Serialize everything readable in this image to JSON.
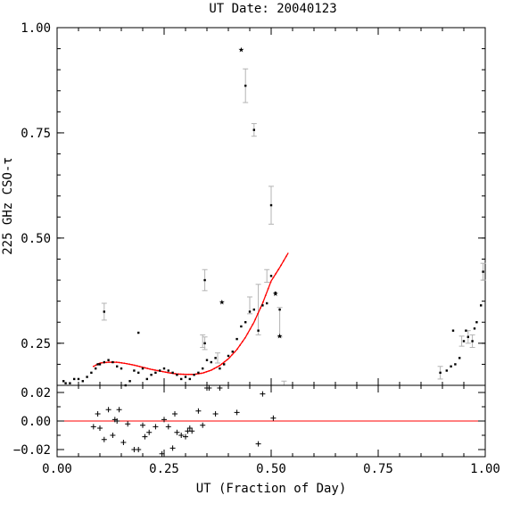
{
  "chart_data": [
    {
      "type": "scatter",
      "title": "UT Date: 20040123",
      "xlabel": "",
      "ylabel": "225 GHz CSO-τ",
      "xlim": [
        0.0,
        1.0
      ],
      "ylim": [
        0.15,
        1.0
      ],
      "yticks": [
        "1.00",
        "0.75",
        "0.50",
        "0.25"
      ],
      "yticks_values": [
        1.0,
        0.75,
        0.5,
        0.25
      ],
      "grid": false,
      "series": [
        {
          "marker": "dot",
          "color": "#000000",
          "points": [
            [
              0.005,
              0.14
            ],
            [
              0.01,
              0.145
            ],
            [
              0.015,
              0.16
            ],
            [
              0.02,
              0.155
            ],
            [
              0.03,
              0.155
            ],
            [
              0.04,
              0.165
            ],
            [
              0.05,
              0.165
            ],
            [
              0.06,
              0.16
            ],
            [
              0.07,
              0.17
            ],
            [
              0.08,
              0.18
            ],
            [
              0.09,
              0.19
            ],
            [
              0.095,
              0.2
            ],
            [
              0.1,
              0.2
            ],
            [
              0.11,
              0.205
            ],
            [
              0.12,
              0.21
            ],
            [
              0.13,
              0.205
            ],
            [
              0.14,
              0.195
            ],
            [
              0.15,
              0.19
            ],
            [
              0.16,
              0.15
            ],
            [
              0.17,
              0.16
            ],
            [
              0.18,
              0.185
            ],
            [
              0.19,
              0.18
            ],
            [
              0.2,
              0.19
            ],
            [
              0.21,
              0.165
            ],
            [
              0.22,
              0.175
            ],
            [
              0.23,
              0.18
            ],
            [
              0.24,
              0.185
            ],
            [
              0.25,
              0.19
            ],
            [
              0.26,
              0.185
            ],
            [
              0.27,
              0.18
            ],
            [
              0.28,
              0.175
            ],
            [
              0.29,
              0.165
            ],
            [
              0.3,
              0.17
            ],
            [
              0.31,
              0.165
            ],
            [
              0.32,
              0.175
            ],
            [
              0.33,
              0.18
            ],
            [
              0.34,
              0.19
            ],
            [
              0.35,
              0.21
            ],
            [
              0.36,
              0.205
            ],
            [
              0.37,
              0.215
            ],
            [
              0.38,
              0.19
            ],
            [
              0.39,
              0.2
            ],
            [
              0.4,
              0.22
            ],
            [
              0.41,
              0.23
            ],
            [
              0.42,
              0.26
            ],
            [
              0.43,
              0.29
            ],
            [
              0.44,
              0.3
            ],
            [
              0.45,
              0.325
            ],
            [
              0.46,
              0.33
            ],
            [
              0.47,
              0.28
            ],
            [
              0.48,
              0.34
            ],
            [
              0.49,
              0.345
            ],
            [
              0.5,
              0.41
            ],
            [
              0.51,
              0.37
            ],
            [
              0.52,
              0.33
            ],
            [
              0.53,
              0.14
            ],
            [
              0.19,
              0.275
            ],
            [
              0.11,
              0.325
            ],
            [
              0.345,
              0.4
            ],
            [
              0.44,
              0.862
            ],
            [
              0.46,
              0.757
            ],
            [
              0.5,
              0.578
            ],
            [
              0.345,
              0.25
            ],
            [
              0.895,
              0.18
            ],
            [
              0.91,
              0.185
            ],
            [
              0.92,
              0.195
            ],
            [
              0.925,
              0.28
            ],
            [
              0.93,
              0.2
            ],
            [
              0.94,
              0.215
            ],
            [
              0.95,
              0.255
            ],
            [
              0.955,
              0.28
            ],
            [
              0.96,
              0.265
            ],
            [
              0.97,
              0.255
            ],
            [
              0.975,
              0.285
            ],
            [
              0.98,
              0.3
            ],
            [
              0.99,
              0.34
            ],
            [
              0.995,
              0.42
            ]
          ]
        },
        {
          "marker": "star",
          "color": "#000000",
          "points": [
            [
              0.43,
              0.95
            ],
            [
              0.33,
              0.14
            ],
            [
              0.385,
              0.35
            ],
            [
              0.51,
              0.37
            ],
            [
              0.52,
              0.27
            ]
          ]
        }
      ],
      "error_bars": [
        [
          0.11,
          0.325,
          0.02
        ],
        [
          0.345,
          0.4,
          0.025
        ],
        [
          0.44,
          0.862,
          0.04
        ],
        [
          0.46,
          0.757,
          0.015
        ],
        [
          0.5,
          0.578,
          0.045
        ],
        [
          0.345,
          0.25,
          0.015
        ],
        [
          0.47,
          0.33,
          0.06
        ],
        [
          0.49,
          0.41,
          0.015
        ],
        [
          0.52,
          0.3,
          0.035
        ],
        [
          0.53,
          0.14,
          0.02
        ],
        [
          0.34,
          0.255,
          0.015
        ],
        [
          0.895,
          0.18,
          0.015
        ],
        [
          0.96,
          0.265,
          0.015
        ],
        [
          0.97,
          0.255,
          0.015
        ],
        [
          0.995,
          0.42,
          0.02
        ],
        [
          0.945,
          0.255,
          0.012
        ],
        [
          0.375,
          0.215,
          0.012
        ],
        [
          0.45,
          0.34,
          0.02
        ]
      ],
      "fit_curve": {
        "color": "#ff0000",
        "x_range": [
          0.085,
          0.54
        ],
        "points": [
          [
            0.085,
            0.195
          ],
          [
            0.1,
            0.203
          ],
          [
            0.12,
            0.205
          ],
          [
            0.14,
            0.205
          ],
          [
            0.16,
            0.202
          ],
          [
            0.18,
            0.198
          ],
          [
            0.2,
            0.193
          ],
          [
            0.22,
            0.188
          ],
          [
            0.24,
            0.184
          ],
          [
            0.26,
            0.18
          ],
          [
            0.28,
            0.177
          ],
          [
            0.3,
            0.176
          ],
          [
            0.32,
            0.176
          ],
          [
            0.34,
            0.179
          ],
          [
            0.36,
            0.186
          ],
          [
            0.38,
            0.197
          ],
          [
            0.4,
            0.213
          ],
          [
            0.42,
            0.235
          ],
          [
            0.44,
            0.264
          ],
          [
            0.46,
            0.3
          ],
          [
            0.48,
            0.345
          ],
          [
            0.5,
            0.398
          ],
          [
            0.52,
            0.43
          ],
          [
            0.54,
            0.465
          ]
        ]
      }
    },
    {
      "type": "scatter",
      "title": "",
      "xlabel": "UT (Fraction of Day)",
      "ylabel": "",
      "xlim": [
        0.0,
        1.0
      ],
      "ylim": [
        -0.025,
        0.025
      ],
      "xticks": [
        "0.00",
        "0.25",
        "0.50",
        "0.75",
        "1.00"
      ],
      "xticks_values": [
        0.0,
        0.25,
        0.5,
        0.75,
        1.0
      ],
      "yticks": [
        "0.02",
        "0.00",
        "−0.02"
      ],
      "yticks_values": [
        0.02,
        0.0,
        -0.02
      ],
      "grid": false,
      "zero_line_color": "#ff0000",
      "series": [
        {
          "marker": "plus",
          "color": "#000000",
          "points": [
            [
              0.085,
              -0.004
            ],
            [
              0.095,
              0.005
            ],
            [
              0.1,
              -0.005
            ],
            [
              0.11,
              -0.013
            ],
            [
              0.12,
              0.008
            ],
            [
              0.13,
              -0.01
            ],
            [
              0.135,
              0.001
            ],
            [
              0.14,
              0.0
            ],
            [
              0.145,
              0.008
            ],
            [
              0.155,
              -0.015
            ],
            [
              0.165,
              -0.002
            ],
            [
              0.18,
              -0.02
            ],
            [
              0.19,
              -0.02
            ],
            [
              0.2,
              -0.003
            ],
            [
              0.205,
              -0.011
            ],
            [
              0.215,
              -0.008
            ],
            [
              0.23,
              -0.004
            ],
            [
              0.245,
              -0.023
            ],
            [
              0.25,
              0.001
            ],
            [
              0.26,
              -0.004
            ],
            [
              0.27,
              -0.019
            ],
            [
              0.275,
              0.005
            ],
            [
              0.28,
              -0.008
            ],
            [
              0.29,
              -0.01
            ],
            [
              0.3,
              -0.011
            ],
            [
              0.305,
              -0.007
            ],
            [
              0.31,
              -0.005
            ],
            [
              0.315,
              -0.007
            ],
            [
              0.33,
              0.007
            ],
            [
              0.34,
              -0.003
            ],
            [
              0.35,
              0.025
            ],
            [
              0.355,
              0.025
            ],
            [
              0.37,
              0.005
            ],
            [
              0.38,
              0.025
            ],
            [
              0.42,
              0.006
            ],
            [
              0.47,
              -0.016
            ],
            [
              0.48,
              0.019
            ],
            [
              0.505,
              0.002
            ]
          ]
        }
      ]
    }
  ]
}
